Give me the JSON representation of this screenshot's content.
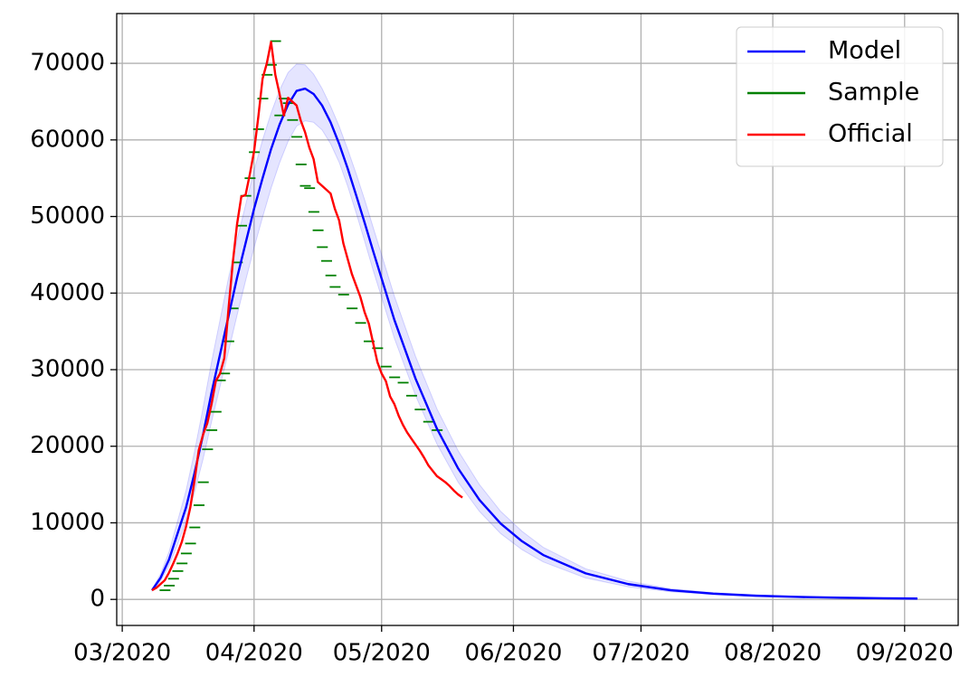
{
  "chart_data": {
    "type": "line",
    "xlim": [
      59.7,
      257.6
    ],
    "xticks": [
      {
        "value": 61,
        "label": "03/2020"
      },
      {
        "value": 92,
        "label": "04/2020"
      },
      {
        "value": 122,
        "label": "05/2020"
      },
      {
        "value": 153,
        "label": "06/2020"
      },
      {
        "value": 183,
        "label": "07/2020"
      },
      {
        "value": 214,
        "label": "08/2020"
      },
      {
        "value": 245,
        "label": "09/2020"
      }
    ],
    "ylim": [
      -3400,
      76500
    ],
    "yticks": [
      0,
      10000,
      20000,
      30000,
      40000,
      50000,
      60000,
      70000
    ],
    "grid": true,
    "legend": "upper right",
    "series": [
      {
        "name": "Model",
        "color": "#0000ff",
        "x": [
          68,
          70,
          72,
          74,
          76,
          78,
          80,
          82,
          84,
          86,
          88,
          90,
          92,
          94,
          96,
          98,
          100,
          102,
          104,
          106,
          108,
          110,
          112,
          114,
          116,
          118,
          120,
          125,
          130,
          135,
          140,
          145,
          150,
          155,
          160,
          170,
          180,
          190,
          200,
          210,
          220,
          230,
          240,
          248
        ],
        "values": [
          1200,
          2800,
          5200,
          8600,
          12000,
          16500,
          21500,
          27000,
          32000,
          37000,
          42000,
          46500,
          51000,
          55000,
          58800,
          62000,
          64600,
          66400,
          66700,
          66000,
          64500,
          62300,
          59500,
          56300,
          52800,
          49200,
          45500,
          36500,
          28800,
          22300,
          17100,
          13000,
          9900,
          7600,
          5800,
          3400,
          2000,
          1200,
          750,
          480,
          320,
          220,
          150,
          110
        ],
        "band_upper": [
          1300,
          3300,
          6200,
          10200,
          14200,
          19300,
          25000,
          31000,
          36500,
          42000,
          47000,
          51500,
          56000,
          60000,
          63500,
          66500,
          68800,
          69900,
          69800,
          68600,
          66700,
          64400,
          61800,
          58800,
          55600,
          52200,
          48600,
          39600,
          31700,
          24900,
          19400,
          15000,
          11500,
          8900,
          6800,
          4000,
          2400,
          1400,
          900,
          580,
          390,
          270,
          190,
          140
        ],
        "band_lower": [
          1100,
          2400,
          4400,
          7200,
          10200,
          14000,
          18300,
          23200,
          27800,
          32400,
          37100,
          41600,
          45900,
          49900,
          53700,
          57000,
          59800,
          61800,
          62500,
          62300,
          61300,
          59500,
          57100,
          54000,
          50500,
          46800,
          43000,
          34100,
          26600,
          20300,
          15300,
          11500,
          8600,
          6500,
          4900,
          2800,
          1650,
          1000,
          620,
          400,
          260,
          180,
          120,
          90
        ]
      },
      {
        "name": "Sample",
        "color": "#008000",
        "x": [
          70,
          71,
          72,
          73,
          74,
          75,
          76,
          77,
          78,
          79,
          80,
          81,
          82,
          83,
          84,
          85,
          86,
          87,
          88,
          89,
          90,
          91,
          92,
          93,
          94,
          95,
          96,
          97,
          98,
          99,
          100,
          101,
          102,
          103,
          104,
          105,
          106,
          107,
          108,
          109,
          110,
          112,
          114,
          116,
          118,
          120,
          122,
          124,
          126,
          128,
          130,
          132,
          134
        ],
        "values": [
          1200,
          1800,
          2700,
          3700,
          4700,
          6000,
          7300,
          9400,
          12300,
          15300,
          19600,
          22100,
          24500,
          28600,
          29500,
          33700,
          38000,
          44000,
          48800,
          52700,
          55000,
          58400,
          61400,
          65400,
          68500,
          69800,
          72900,
          63200,
          65400,
          64800,
          62600,
          60400,
          56800,
          54000,
          53700,
          50600,
          48200,
          46000,
          44200,
          42300,
          40800,
          39800,
          38000,
          36100,
          33700,
          32800,
          30400,
          29000,
          28300,
          26600,
          24800,
          23200,
          22100
        ]
      },
      {
        "name": "Official",
        "color": "#ff0000",
        "x": [
          68,
          69,
          70,
          71,
          72,
          73,
          74,
          75,
          76,
          77,
          78,
          79,
          80,
          81,
          82,
          83,
          84,
          85,
          86,
          87,
          88,
          89,
          90,
          91,
          92,
          93,
          94,
          95,
          96,
          97,
          98,
          99,
          100,
          101,
          102,
          103,
          104,
          105,
          106,
          107,
          108,
          109,
          110,
          111,
          112,
          113,
          114,
          115,
          116,
          117,
          118,
          119,
          120,
          121,
          122,
          123,
          124,
          125,
          126,
          127,
          128,
          129,
          130,
          131,
          132,
          133,
          134,
          135,
          136,
          137,
          138,
          139,
          140,
          141
        ],
        "values": [
          1200,
          1500,
          2000,
          2500,
          3500,
          4700,
          6000,
          7500,
          9500,
          12000,
          15500,
          19500,
          21500,
          23000,
          25500,
          28500,
          29500,
          31500,
          38000,
          44000,
          49000,
          52600,
          52800,
          55500,
          58500,
          63000,
          68000,
          70000,
          72800,
          68500,
          66000,
          63200,
          65500,
          65000,
          64500,
          62500,
          61000,
          59000,
          57500,
          54500,
          54000,
          53500,
          53000,
          51000,
          49500,
          46500,
          44500,
          42500,
          41000,
          39500,
          37500,
          36000,
          33500,
          31000,
          29500,
          28500,
          26500,
          25500,
          24000,
          22800,
          21800,
          21000,
          20200,
          19400,
          18500,
          17500,
          16800,
          16100,
          15700,
          15300,
          14800,
          14200,
          13700,
          13300
        ]
      }
    ]
  }
}
